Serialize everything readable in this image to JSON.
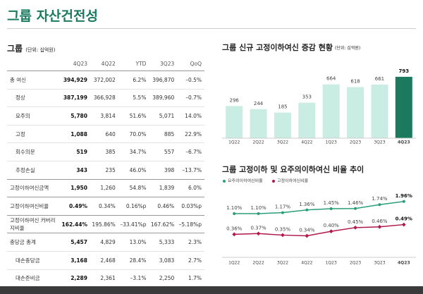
{
  "header": {
    "title": "그룹 자산건전성"
  },
  "table": {
    "title": "그룹",
    "unit": "(단위: 십억원)",
    "columns": [
      "4Q23",
      "4Q22",
      "YTD",
      "3Q23",
      "QoQ"
    ],
    "rows": [
      [
        "총 여신",
        "394,929",
        "372,002",
        "6.2%",
        "396,870",
        "–0.5%"
      ],
      [
        "정상",
        "387,199",
        "366,928",
        "5.5%",
        "389,960",
        "–0.7%"
      ],
      [
        "요주의",
        "5,780",
        "3,814",
        "51.6%",
        "5,071",
        "14.0%"
      ],
      [
        "고정",
        "1,088",
        "640",
        "70.0%",
        "885",
        "22.9%"
      ],
      [
        "회수의문",
        "519",
        "385",
        "34.7%",
        "557",
        "–6.7%"
      ],
      [
        "추정손실",
        "343",
        "235",
        "46.0%",
        "398",
        "–13.7%"
      ],
      [
        "고정이하여신금액",
        "1,950",
        "1,260",
        "54.8%",
        "1,839",
        "6.0%"
      ],
      [
        "고정이하여신비율",
        "0.49%",
        "0.34%",
        "0.16%p",
        "0.46%",
        "0.03%p"
      ],
      [
        "고정이하여신 커버리지비율",
        "162.44%",
        "195.86%",
        "–33.41%p",
        "167.62%",
        "–5.18%p"
      ],
      [
        "충당금 총계",
        "5,457",
        "4,829",
        "13.0%",
        "5,333",
        "2.3%"
      ],
      [
        "대손충당금",
        "3,168",
        "2,468",
        "28.4%",
        "3,083",
        "2.7%"
      ],
      [
        "대손준비금",
        "2,289",
        "2,361",
        "–3.1%",
        "2,250",
        "1.7%"
      ]
    ]
  },
  "chart_data": [
    {
      "type": "bar",
      "title": "그룹 신규 고정이하여신 증감 현황",
      "unit": "(단위: 십억원)",
      "categories": [
        "1Q22",
        "2Q22",
        "3Q22",
        "4Q22",
        "1Q23",
        "2Q23",
        "3Q23",
        "4Q23"
      ],
      "values": [
        296,
        244,
        185,
        353,
        664,
        618,
        661,
        793
      ],
      "colors": [
        "#c9ece3",
        "#c9ece3",
        "#c9ece3",
        "#c9ece3",
        "#c9ece3",
        "#c9ece3",
        "#c9ece3",
        "#1b7a5e"
      ],
      "ylim": [
        -250,
        900
      ]
    },
    {
      "type": "line",
      "title": "그룹 고정이하 및 요주의이하여신 비율 추이",
      "categories": [
        "1Q22",
        "2Q22",
        "3Q22",
        "4Q22",
        "1Q23",
        "2Q23",
        "3Q23",
        "4Q23"
      ],
      "legend": "top-left",
      "ylim": [
        -1.75,
        2.5
      ],
      "y2lim": [
        0.1,
        0.9
      ],
      "series": [
        {
          "name": "요주의이하여신비율",
          "color": "#2a9d7a",
          "values": [
            1.1,
            1.1,
            1.17,
            1.36,
            1.45,
            1.46,
            1.74,
            1.96
          ],
          "value_labels": [
            "1.10%",
            "1.10%",
            "1.17%",
            "1.36%",
            "1.45%",
            "1.46%",
            "1.74%",
            "1.96%"
          ]
        },
        {
          "name": "고정이하여신비율",
          "color": "#b0174a",
          "axis": "y2",
          "values": [
            0.36,
            0.37,
            0.35,
            0.34,
            0.4,
            0.45,
            0.46,
            0.49
          ],
          "value_labels": [
            "0.36%",
            "0.37%",
            "0.35%",
            "0.34%",
            "0.40%",
            "0.45%",
            "0.46%",
            "0.49%"
          ]
        }
      ]
    }
  ]
}
